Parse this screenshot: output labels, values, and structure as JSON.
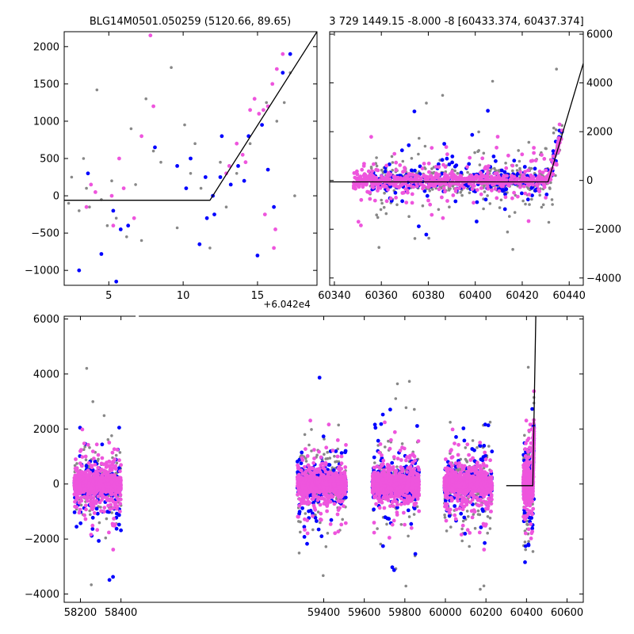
{
  "chart_data": [
    {
      "id": "top-left",
      "type": "scatter",
      "title": "BLG14M0501.050259 (5120.66, 89.65)",
      "offset_label": "+6.042e4",
      "xlim": [
        2,
        19
      ],
      "ylim": [
        -1200,
        2200
      ],
      "x_ticks": [
        5,
        10,
        15
      ],
      "y_ticks": [
        -1000,
        -500,
        0,
        500,
        1000,
        1500,
        2000
      ],
      "y_axis_side": "left",
      "grid": false,
      "series": [
        {
          "color": "#888888",
          "points": [
            [
              2.3,
              -100
            ],
            [
              2.5,
              250
            ],
            [
              3.0,
              -200
            ],
            [
              3.3,
              500
            ],
            [
              3.5,
              100
            ],
            [
              4.2,
              1420
            ],
            [
              4.5,
              -50
            ],
            [
              4.9,
              -400
            ],
            [
              5.2,
              200
            ],
            [
              5.5,
              -300
            ],
            [
              6.2,
              -550
            ],
            [
              6.5,
              900
            ],
            [
              7.2,
              -600
            ],
            [
              7.5,
              1300
            ],
            [
              8.5,
              450
            ],
            [
              9.2,
              1720
            ],
            [
              9.6,
              -430
            ],
            [
              10.1,
              950
            ],
            [
              10.5,
              300
            ],
            [
              11.2,
              100
            ],
            [
              11.8,
              -700
            ],
            [
              12.5,
              450
            ],
            [
              13.6,
              300
            ],
            [
              14.5,
              700
            ],
            [
              15.6,
              1250
            ],
            [
              16.3,
              1000
            ],
            [
              16.8,
              1250
            ],
            [
              17.5,
              0
            ],
            [
              17.2,
              1650
            ],
            [
              3.7,
              -150
            ],
            [
              6.8,
              150
            ],
            [
              8.0,
              600
            ],
            [
              10.8,
              700
            ],
            [
              12.9,
              -150
            ]
          ]
        },
        {
          "color": "#ee55dd",
          "points": [
            [
              3.5,
              -150
            ],
            [
              3.8,
              150
            ],
            [
              4.1,
              50
            ],
            [
              5.2,
              0
            ],
            [
              5.3,
              -400
            ],
            [
              5.7,
              500
            ],
            [
              6.0,
              100
            ],
            [
              6.7,
              -300
            ],
            [
              7.2,
              800
            ],
            [
              7.8,
              2150
            ],
            [
              8.0,
              1200
            ],
            [
              12.9,
              300
            ],
            [
              13.1,
              400
            ],
            [
              13.6,
              700
            ],
            [
              14.0,
              550
            ],
            [
              14.5,
              1150
            ],
            [
              14.8,
              1300
            ],
            [
              15.1,
              1100
            ],
            [
              15.4,
              1150
            ],
            [
              15.7,
              1200
            ],
            [
              16.0,
              1500
            ],
            [
              16.3,
              1700
            ],
            [
              16.7,
              1900
            ],
            [
              16.2,
              -450
            ],
            [
              16.1,
              -700
            ],
            [
              15.5,
              -250
            ],
            [
              14.2,
              450
            ]
          ]
        },
        {
          "color": "#0000ff",
          "points": [
            [
              3.0,
              -1000
            ],
            [
              3.6,
              300
            ],
            [
              4.5,
              -780
            ],
            [
              5.3,
              -200
            ],
            [
              5.5,
              -1150
            ],
            [
              5.8,
              -450
            ],
            [
              6.3,
              -400
            ],
            [
              8.1,
              650
            ],
            [
              9.6,
              400
            ],
            [
              10.2,
              100
            ],
            [
              10.5,
              500
            ],
            [
              11.1,
              -650
            ],
            [
              11.6,
              -300
            ],
            [
              12.1,
              -250
            ],
            [
              12.5,
              250
            ],
            [
              12.6,
              800
            ],
            [
              13.2,
              150
            ],
            [
              13.7,
              400
            ],
            [
              14.1,
              200
            ],
            [
              14.4,
              800
            ],
            [
              15.0,
              -800
            ],
            [
              15.3,
              950
            ],
            [
              15.7,
              350
            ],
            [
              16.1,
              -150
            ],
            [
              16.7,
              1650
            ],
            [
              17.2,
              1900
            ],
            [
              11.5,
              250
            ],
            [
              12.0,
              0
            ]
          ]
        }
      ],
      "model": [
        [
          2,
          -60
        ],
        [
          11.8,
          -60
        ],
        [
          19,
          2200
        ]
      ]
    },
    {
      "id": "top-right",
      "type": "scatter",
      "title": "3 729 1449.15 -8.000 -8 [60433.374, 60437.374]",
      "xlim": [
        60338,
        60446
      ],
      "ylim": [
        -4300,
        6100
      ],
      "x_ticks": [
        60340,
        60360,
        60380,
        60400,
        60420,
        60440
      ],
      "y_ticks": [
        -4000,
        -2000,
        0,
        2000,
        4000,
        6000
      ],
      "y_axis_side": "right",
      "grid": false,
      "model": [
        [
          60338,
          -60
        ],
        [
          60431,
          -60
        ],
        [
          60446,
          4800
        ]
      ]
    },
    {
      "id": "bottom",
      "type": "scatter",
      "xlim": [
        58120,
        60680
      ],
      "ylim": [
        -4300,
        6100
      ],
      "x_ticks": [
        58200,
        58400,
        59400,
        59600,
        59800,
        60000,
        60200,
        60400,
        60600
      ],
      "y_ticks": [
        -4000,
        -2000,
        0,
        2000,
        4000,
        6000
      ],
      "y_axis_side": "left",
      "grid": false,
      "axis_break": true,
      "model": [
        [
          60300,
          -60
        ],
        [
          60431,
          -60
        ],
        [
          60446,
          6100
        ]
      ]
    }
  ]
}
